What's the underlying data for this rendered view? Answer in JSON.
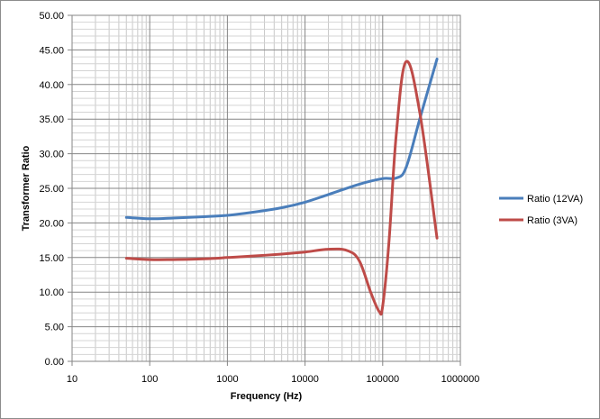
{
  "chart_data": {
    "type": "line",
    "title": "",
    "xlabel": "Frequency (Hz)",
    "ylabel": "Transformer Ratio",
    "xscale": "log",
    "xlim": [
      10,
      1000000
    ],
    "ylim": [
      0,
      50
    ],
    "x_ticks": [
      10,
      100,
      1000,
      10000,
      100000,
      1000000
    ],
    "x_tick_labels": [
      "10",
      "100",
      "1000",
      "10000",
      "100000",
      "1000000"
    ],
    "y_ticks": [
      0,
      5,
      10,
      15,
      20,
      25,
      30,
      35,
      40,
      45,
      50
    ],
    "y_tick_labels": [
      "0.00",
      "5.00",
      "10.00",
      "15.00",
      "20.00",
      "25.00",
      "30.00",
      "35.00",
      "40.00",
      "45.00",
      "50.00"
    ],
    "grid": true,
    "legend_position": "right",
    "series": [
      {
        "name": "Ratio (12VA)",
        "color": "#4a7ebb",
        "x": [
          50,
          100,
          200,
          500,
          1000,
          2000,
          5000,
          10000,
          20000,
          50000,
          100000,
          150000,
          200000,
          300000,
          500000
        ],
        "y": [
          20.8,
          20.6,
          20.7,
          20.9,
          21.1,
          21.5,
          22.2,
          23.0,
          24.1,
          25.6,
          26.4,
          26.5,
          28.0,
          35.0,
          43.7
        ]
      },
      {
        "name": "Ratio (3VA)",
        "color": "#be4b48",
        "x": [
          50,
          100,
          200,
          500,
          1000,
          2000,
          5000,
          10000,
          20000,
          35000,
          50000,
          70000,
          90000,
          100000,
          120000,
          150000,
          200000,
          300000,
          500000
        ],
        "y": [
          14.9,
          14.7,
          14.7,
          14.8,
          15.0,
          15.2,
          15.5,
          15.8,
          16.2,
          16.0,
          14.5,
          10.0,
          7.2,
          8.0,
          17.0,
          33.0,
          43.3,
          36.0,
          17.8
        ]
      }
    ]
  }
}
